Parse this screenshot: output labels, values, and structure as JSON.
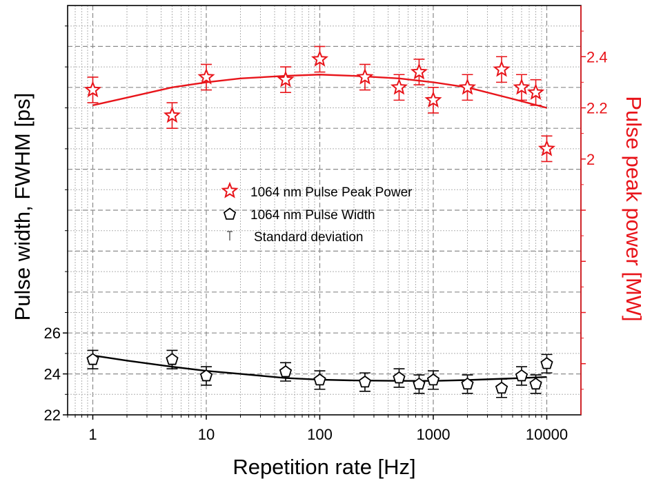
{
  "chart_data": {
    "type": "scatter",
    "title": "",
    "xlabel": "Repetition rate [Hz]",
    "ylabel_left": "Pulse width, FWHM [ps]",
    "ylabel_right": "Pulse peak power [MW]",
    "x_scale": "log",
    "xlim": [
      0.6,
      20000
    ],
    "x_ticks": [
      1,
      10,
      100,
      1000,
      10000
    ],
    "x_tick_labels": [
      "1",
      "10",
      "100",
      "1000",
      "10000"
    ],
    "ylim_left": [
      22,
      42
    ],
    "y_ticks_left": [
      22,
      24,
      26
    ],
    "y_tick_labels_left": [
      "22",
      "24",
      "26"
    ],
    "ylim_right": [
      1.0,
      2.6
    ],
    "y_ticks_right": [
      2.0,
      2.2,
      2.4
    ],
    "y_tick_labels_right": [
      "2",
      "2.2",
      "2.4"
    ],
    "grid": true,
    "legend_position": "center",
    "colors": {
      "peak_power": "#e8141a",
      "pulse_width": "#000000"
    },
    "legend": [
      {
        "label": "1064 nm Pulse Peak Power",
        "marker": "star-icon"
      },
      {
        "label": "1064 nm Pulse Width",
        "marker": "pentagon-icon"
      },
      {
        "label": "Standard deviation",
        "marker": "error-bar-icon"
      }
    ],
    "series": [
      {
        "name": "1064 nm Pulse Peak Power",
        "axis": "right",
        "x": [
          1,
          5,
          10,
          50,
          100,
          250,
          500,
          750,
          1000,
          2000,
          4000,
          6000,
          8000,
          10000
        ],
        "y": [
          2.27,
          2.17,
          2.32,
          2.31,
          2.39,
          2.32,
          2.28,
          2.34,
          2.23,
          2.28,
          2.35,
          2.28,
          2.26,
          2.04
        ],
        "err": [
          0.05,
          0.05,
          0.05,
          0.05,
          0.05,
          0.05,
          0.05,
          0.05,
          0.05,
          0.05,
          0.05,
          0.05,
          0.05,
          0.05
        ]
      },
      {
        "name": "1064 nm Pulse Width",
        "axis": "left",
        "x": [
          1,
          5,
          10,
          50,
          100,
          250,
          500,
          750,
          1000,
          2000,
          4000,
          6000,
          8000,
          10000
        ],
        "y": [
          24.7,
          24.7,
          23.9,
          24.1,
          23.7,
          23.6,
          23.8,
          23.5,
          23.7,
          23.5,
          23.3,
          23.9,
          23.5,
          24.5
        ],
        "err": [
          0.45,
          0.45,
          0.45,
          0.45,
          0.45,
          0.45,
          0.45,
          0.45,
          0.45,
          0.45,
          0.45,
          0.45,
          0.45,
          0.45
        ]
      }
    ],
    "fits": [
      {
        "axis": "right",
        "x": [
          1,
          2,
          5,
          10,
          20,
          50,
          100,
          200,
          500,
          1000,
          2000,
          5000,
          10000
        ],
        "y": [
          2.21,
          2.24,
          2.28,
          2.3,
          2.315,
          2.325,
          2.33,
          2.325,
          2.315,
          2.3,
          2.28,
          2.235,
          2.2
        ]
      },
      {
        "axis": "left",
        "x": [
          1,
          2,
          5,
          10,
          20,
          50,
          100,
          200,
          500,
          1000,
          2000,
          5000,
          10000
        ],
        "y": [
          24.9,
          24.65,
          24.35,
          24.15,
          24.0,
          23.8,
          23.72,
          23.68,
          23.66,
          23.66,
          23.7,
          23.78,
          23.85
        ]
      }
    ]
  }
}
